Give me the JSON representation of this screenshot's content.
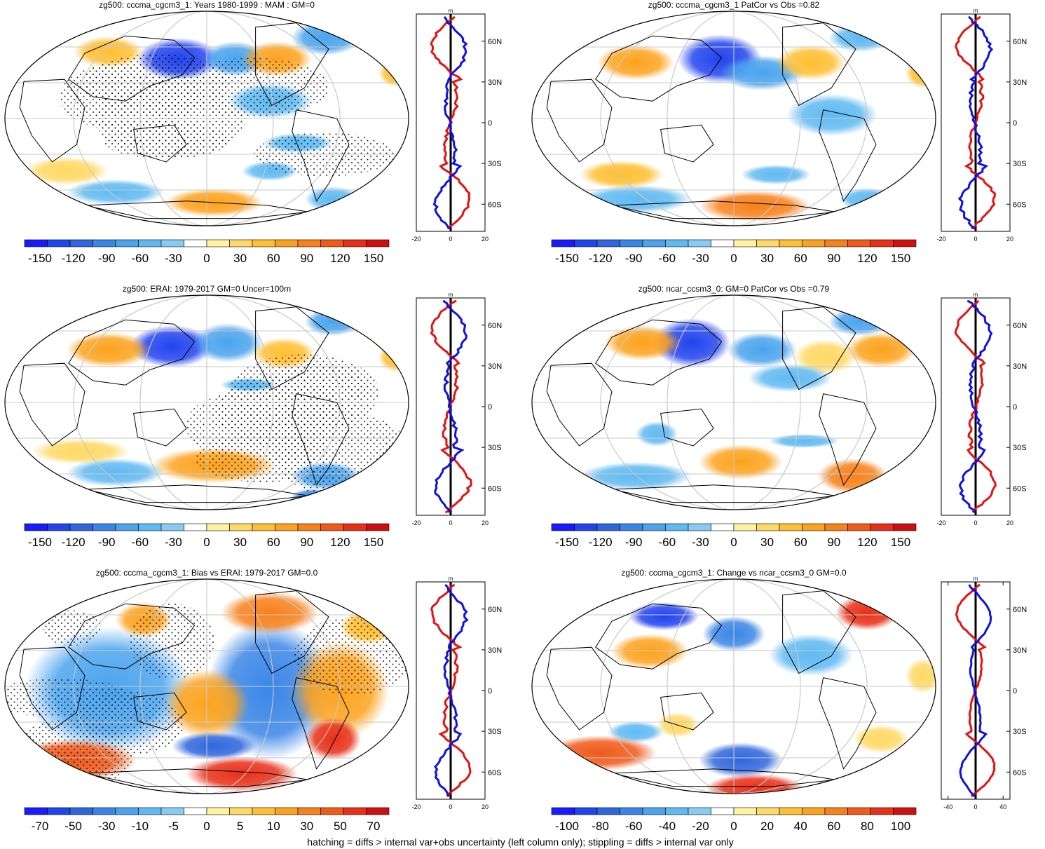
{
  "footer": "hatching = diffs > internal var+obs uncertainty (left column only); stippling = diffs > internal var only",
  "colors": {
    "land_outline": "#000000",
    "grid": "#c8c8c8",
    "model_line": "#e81010",
    "obs_line": "#1010e8"
  },
  "palette_main": [
    "#1a1aff",
    "#2244ee",
    "#2f66dd",
    "#3a86e6",
    "#4ba4ee",
    "#60baf2",
    "#86cbf2",
    "#ffffff",
    "#ffffff",
    "#fff2a0",
    "#ffd966",
    "#ffbf33",
    "#fca31e",
    "#f7811a",
    "#f05a1a",
    "#e83018",
    "#d01010"
  ],
  "panels": [
    {
      "id": "p1",
      "title": "zg500: cccma_cgcm3_1: Years 1980-1999 : MAM : GM=0",
      "cbar_labels": [
        "-150",
        "-120",
        "-90",
        "-60",
        "-30",
        "0",
        "30",
        "60",
        "90",
        "120",
        "150"
      ],
      "zonal": {
        "unit": "m",
        "xticks": [
          "-20",
          "0",
          "20"
        ],
        "xrange": [
          -20,
          20
        ],
        "lat_ticks": [
          "60N",
          "30N",
          "0",
          "30S",
          "60S"
        ]
      },
      "stipple": true
    },
    {
      "id": "p2",
      "title": "zg500: cccma_cgcm3_1 PatCor vs Obs =0.82",
      "cbar_labels": [
        "-150",
        "-120",
        "-90",
        "-60",
        "-30",
        "0",
        "30",
        "60",
        "90",
        "120",
        "150"
      ],
      "zonal": {
        "unit": "m",
        "xticks": [
          "-20",
          "0",
          "20"
        ],
        "xrange": [
          -20,
          20
        ],
        "lat_ticks": [
          "60N",
          "30N",
          "0",
          "30S",
          "60S"
        ]
      },
      "stipple": false
    },
    {
      "id": "p3",
      "title": "zg500: ERAI: 1979-2017 GM=0 Uncer=100m",
      "cbar_labels": [
        "-150",
        "-120",
        "-90",
        "-60",
        "-30",
        "0",
        "30",
        "60",
        "90",
        "120",
        "150"
      ],
      "zonal": {
        "unit": "m",
        "xticks": [
          "-20",
          "0",
          "20"
        ],
        "xrange": [
          -20,
          20
        ],
        "lat_ticks": [
          "60N",
          "30N",
          "0",
          "30S",
          "60S"
        ]
      },
      "stipple": true
    },
    {
      "id": "p4",
      "title": "zg500: ncar_ccsm3_0: GM=0 PatCor vs Obs =0.79",
      "cbar_labels": [
        "-150",
        "-120",
        "-90",
        "-60",
        "-30",
        "0",
        "30",
        "60",
        "90",
        "120",
        "150"
      ],
      "zonal": {
        "unit": "m",
        "xticks": [
          "-20",
          "0",
          "20"
        ],
        "xrange": [
          -20,
          20
        ],
        "lat_ticks": [
          "60N",
          "30N",
          "0",
          "30S",
          "60S"
        ]
      },
      "stipple": false
    },
    {
      "id": "p5",
      "title": "zg500: cccma_cgcm3_1: Bias vs ERAI: 1979-2017 GM=0.0",
      "cbar_labels": [
        "-70",
        "-50",
        "-30",
        "-10",
        "-5",
        "0",
        "5",
        "10",
        "30",
        "50",
        "70"
      ],
      "zonal": {
        "unit": "m",
        "xticks": [
          "-20",
          "0",
          "20"
        ],
        "xrange": [
          -20,
          20
        ],
        "lat_ticks": [
          "60N",
          "30N",
          "0",
          "30S",
          "60S"
        ]
      },
      "stipple": true
    },
    {
      "id": "p6",
      "title": "zg500: cccma_cgcm3_1: Change vs ncar_ccsm3_0 GM=0.0",
      "cbar_labels": [
        "-100",
        "-80",
        "-60",
        "-40",
        "-20",
        "0",
        "20",
        "40",
        "60",
        "80",
        "100"
      ],
      "zonal": {
        "unit": "m",
        "xticks": [
          "-40",
          "0",
          "40"
        ],
        "xrange": [
          -50,
          50
        ],
        "lat_ticks": [
          "60N",
          "30N",
          "0",
          "30S",
          "60S"
        ]
      },
      "stipple": false
    }
  ]
}
